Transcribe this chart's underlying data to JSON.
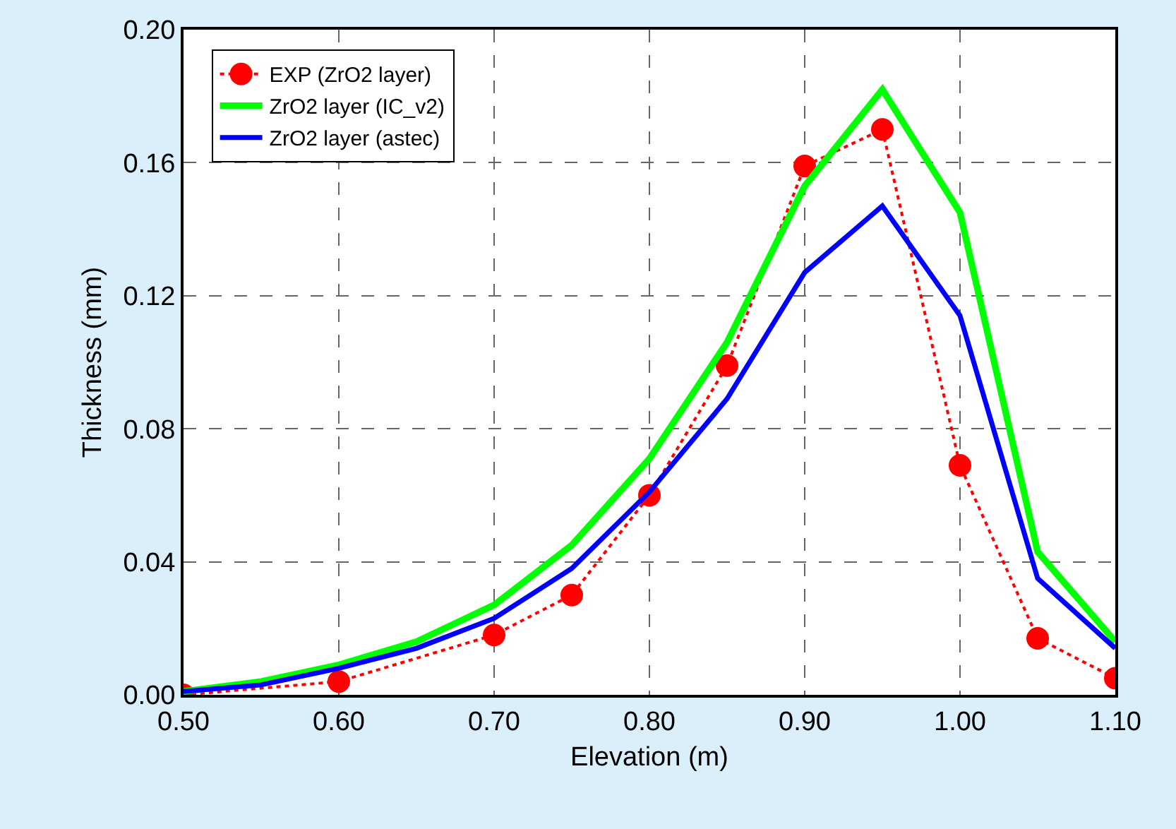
{
  "chart_data": {
    "type": "line",
    "xlabel": "Elevation (m)",
    "ylabel": "Thickness (mm)",
    "xlim": [
      0.5,
      1.1
    ],
    "xticks": [
      {
        "value": 0.5,
        "label": "0.50"
      },
      {
        "value": 0.6,
        "label": "0.60"
      },
      {
        "value": 0.7,
        "label": "0.70"
      },
      {
        "value": 0.8,
        "label": "0.80"
      },
      {
        "value": 0.9,
        "label": "0.90"
      },
      {
        "value": 1.0,
        "label": "1.00"
      },
      {
        "value": 1.1,
        "label": "1.10"
      }
    ],
    "ylim": [
      0,
      0.2
    ],
    "yticks": [
      {
        "value": 0,
        "label": "0.00"
      },
      {
        "value": 0.04,
        "label": "0.04"
      },
      {
        "value": 0.08,
        "label": "0.08"
      },
      {
        "value": 0.12,
        "label": "0.12"
      },
      {
        "value": 0.16,
        "label": "0.16"
      },
      {
        "value": 0.2,
        "label": "0.20"
      }
    ],
    "grid": true,
    "legend": "top left",
    "series": [
      {
        "name": "EXP (ZrO2 layer)",
        "color": "#ff0000",
        "marker": "circle",
        "line_style": "dotted",
        "x": [
          0.5,
          0.6,
          0.7,
          0.75,
          0.8,
          0.85,
          0.9,
          0.95,
          1.0,
          1.05,
          1.1
        ],
        "values": [
          0.0,
          0.004,
          0.018,
          0.03,
          0.06,
          0.099,
          0.159,
          0.17,
          0.069,
          0.017,
          0.005
        ]
      },
      {
        "name": "ZrO2 layer (IC_v2)",
        "color": "#00ff00",
        "marker": "none",
        "line_style": "solid",
        "x": [
          0.5,
          0.55,
          0.6,
          0.65,
          0.7,
          0.75,
          0.8,
          0.85,
          0.9,
          0.95,
          1.0,
          1.05,
          1.1
        ],
        "values": [
          0.001,
          0.004,
          0.009,
          0.016,
          0.027,
          0.045,
          0.071,
          0.106,
          0.153,
          0.182,
          0.145,
          0.043,
          0.016
        ]
      },
      {
        "name": "ZrO2 layer (astec)",
        "color": "#0000ff",
        "marker": "none",
        "line_style": "solid",
        "x": [
          0.5,
          0.55,
          0.6,
          0.65,
          0.7,
          0.75,
          0.8,
          0.85,
          0.9,
          0.95,
          1.0,
          1.05,
          1.1
        ],
        "values": [
          0.001,
          0.003,
          0.008,
          0.014,
          0.023,
          0.038,
          0.061,
          0.089,
          0.127,
          0.147,
          0.114,
          0.035,
          0.014
        ]
      }
    ]
  }
}
